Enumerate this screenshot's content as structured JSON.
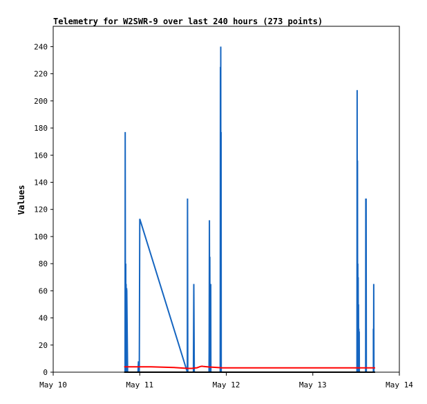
{
  "chart_data": {
    "type": "line",
    "title": "Telemetry for W2SWR-9 over last 240 hours (273 points)",
    "xlabel": "",
    "ylabel": "Values",
    "xlim": [
      "May 10",
      "May 14"
    ],
    "ylim": [
      0,
      255
    ],
    "x_tick_labels": [
      "May 10",
      "May 11",
      "May 12",
      "May 13",
      "May 14"
    ],
    "y_ticks": [
      0,
      20,
      40,
      60,
      80,
      100,
      120,
      140,
      160,
      180,
      200,
      220,
      240
    ],
    "grid": false,
    "legend": "none",
    "x_unit": "days since May 10 00:00",
    "series": [
      {
        "color": "#1565c0",
        "x": [
          0.83,
          0.832,
          0.835,
          0.838,
          0.84,
          0.842,
          0.845,
          0.848,
          0.85,
          0.86,
          0.875,
          0.88,
          0.9,
          0.98,
          0.985,
          0.99,
          0.995,
          1.0,
          1.0,
          1.55,
          1.552,
          1.555,
          1.56,
          1.6,
          1.62,
          1.625,
          1.63,
          1.635,
          1.64,
          1.76,
          1.8,
          1.8,
          1.802,
          1.805,
          1.808,
          1.81,
          1.812,
          1.815,
          1.818,
          1.82,
          1.822,
          1.825,
          1.828,
          1.83,
          1.84,
          1.9,
          1.93,
          1.932,
          1.934,
          1.936,
          1.938,
          1.94,
          1.942,
          1.944,
          1.946,
          1.95,
          3.5,
          3.51,
          3.512,
          3.514,
          3.516,
          3.518,
          3.52,
          3.522,
          3.524,
          3.526,
          3.528,
          3.53,
          3.532,
          3.534,
          3.536,
          3.538,
          3.54,
          3.55,
          3.6,
          3.61,
          3.612,
          3.614,
          3.616,
          3.618,
          3.62,
          3.7,
          3.7,
          3.702,
          3.704,
          3.706,
          3.708,
          3.71
        ],
        "values": [
          0,
          177,
          0,
          80,
          0,
          65,
          0,
          62,
          60,
          0,
          0,
          0,
          0,
          0,
          8,
          0,
          0,
          113,
          113,
          0,
          128,
          0,
          0,
          0,
          0,
          65,
          0,
          0,
          0,
          0,
          0,
          0,
          17,
          112,
          0,
          85,
          0,
          32,
          0,
          65,
          0,
          0,
          0,
          0,
          0,
          0,
          0,
          225,
          0,
          240,
          0,
          177,
          0,
          0,
          0,
          0,
          0,
          0,
          208,
          0,
          156,
          0,
          80,
          0,
          70,
          0,
          50,
          0,
          32,
          0,
          30,
          0,
          0,
          0,
          0,
          0,
          128,
          0,
          128,
          0,
          0,
          0,
          32,
          0,
          65,
          0,
          0,
          0
        ]
      },
      {
        "color": "#ff0000",
        "x": [
          0.82,
          0.87,
          0.88,
          0.89,
          0.9,
          1.0,
          1.13,
          1.13,
          1.4,
          1.4,
          1.55,
          1.55,
          1.6,
          1.65,
          1.66,
          1.7,
          1.72,
          1.74,
          1.8,
          1.85,
          1.9,
          1.95,
          2.0,
          2.5,
          3.0,
          3.5,
          3.72
        ],
        "values": [
          4,
          4,
          4,
          4,
          4,
          4,
          4,
          4,
          3.4,
          3.4,
          2.8,
          2.8,
          2.8,
          3.2,
          3.2,
          4.2,
          4.4,
          4.2,
          3.8,
          3.6,
          3.4,
          3.2,
          3.2,
          3.2,
          3.2,
          3.2,
          3.2
        ]
      },
      {
        "color": "#000000",
        "x": [
          0.82,
          3.72
        ],
        "values": [
          0,
          0
        ]
      }
    ]
  }
}
